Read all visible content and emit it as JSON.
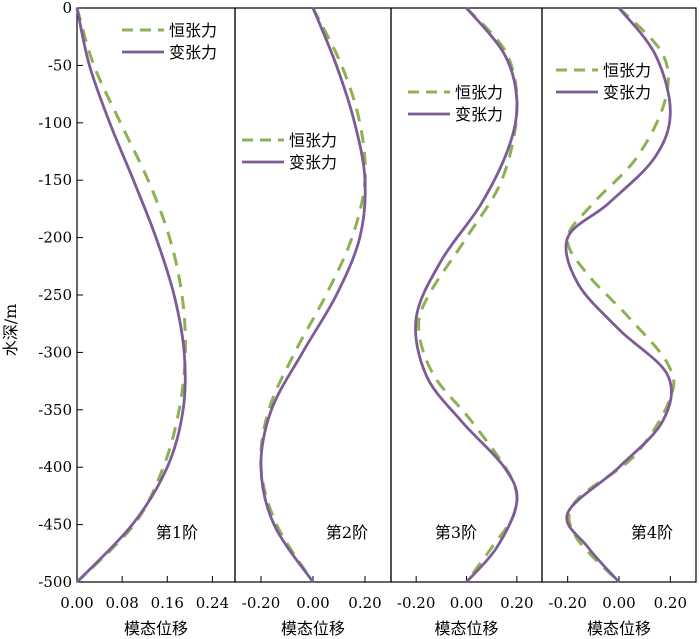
{
  "chart_data": {
    "type": "line",
    "ylabel": "水深/m",
    "ylim": [
      -500,
      0
    ],
    "yticks": [
      0,
      -50,
      -100,
      -150,
      -200,
      -250,
      -300,
      -350,
      -400,
      -450,
      -500
    ],
    "colors": {
      "const": "#8db253",
      "var": "#7d5b96"
    },
    "legend_entries": [
      "恒张力",
      "变张力"
    ],
    "panels": [
      {
        "label": "第1阶",
        "xlabel": "模态位移",
        "xlim": [
          0,
          0.28
        ],
        "xticks": [
          "0.00",
          "0.08",
          "0.16",
          "0.24"
        ],
        "xtick_values": [
          0,
          0.08,
          0.16,
          0.24
        ],
        "legend_position": "top-right",
        "series": [
          {
            "name": "恒张力",
            "style": "dashed",
            "points": [
              [
                0,
                0
              ],
              [
                0.03,
                -50
              ],
              [
                0.077,
                -100
              ],
              [
                0.126,
                -150
              ],
              [
                0.164,
                -200
              ],
              [
                0.186,
                -250
              ],
              [
                0.192,
                -300
              ],
              [
                0.181,
                -350
              ],
              [
                0.153,
                -400
              ],
              [
                0.101,
                -450
              ],
              [
                0,
                -500
              ]
            ]
          },
          {
            "name": "变张力",
            "style": "solid",
            "points": [
              [
                0,
                0
              ],
              [
                0.022,
                -50
              ],
              [
                0.058,
                -100
              ],
              [
                0.1,
                -150
              ],
              [
                0.14,
                -200
              ],
              [
                0.172,
                -250
              ],
              [
                0.19,
                -300
              ],
              [
                0.188,
                -350
              ],
              [
                0.16,
                -400
              ],
              [
                0.098,
                -450
              ],
              [
                0,
                -500
              ]
            ]
          }
        ]
      },
      {
        "label": "第2阶",
        "xlabel": "模态位移",
        "xlim": [
          -0.3,
          0.3
        ],
        "xticks": [
          "-0.20",
          "0.00",
          "0.20"
        ],
        "xtick_values": [
          -0.2,
          0,
          0.2
        ],
        "legend_position": "upper-middle",
        "series": [
          {
            "name": "恒张力",
            "style": "dashed",
            "points": [
              [
                0,
                0
              ],
              [
                0.11,
                -50
              ],
              [
                0.18,
                -100
              ],
              [
                0.2,
                -150
              ],
              [
                0.15,
                -200
              ],
              [
                0.05,
                -250
              ],
              [
                -0.07,
                -300
              ],
              [
                -0.17,
                -350
              ],
              [
                -0.2,
                -400
              ],
              [
                -0.14,
                -450
              ],
              [
                0,
                -500
              ]
            ]
          },
          {
            "name": "变张力",
            "style": "solid",
            "points": [
              [
                0,
                0
              ],
              [
                0.09,
                -50
              ],
              [
                0.16,
                -100
              ],
              [
                0.2,
                -150
              ],
              [
                0.18,
                -200
              ],
              [
                0.09,
                -250
              ],
              [
                -0.04,
                -300
              ],
              [
                -0.16,
                -350
              ],
              [
                -0.2,
                -400
              ],
              [
                -0.15,
                -450
              ],
              [
                0,
                -500
              ]
            ]
          }
        ]
      },
      {
        "label": "第3阶",
        "xlabel": "模态位移",
        "xlim": [
          -0.3,
          0.3
        ],
        "xticks": [
          "-0.20",
          "0.00",
          "0.20"
        ],
        "xtick_values": [
          -0.2,
          0,
          0.2
        ],
        "legend_position": "top-center",
        "series": [
          {
            "name": "恒张力",
            "style": "dashed",
            "points": [
              [
                0,
                0
              ],
              [
                0.16,
                -40
              ],
              [
                0.2,
                -90
              ],
              [
                0.14,
                -150
              ],
              [
                0.0,
                -200
              ],
              [
                -0.15,
                -250
              ],
              [
                -0.19,
                -280
              ],
              [
                -0.13,
                -320
              ],
              [
                0.02,
                -360
              ],
              [
                0.18,
                -410
              ],
              [
                0.19,
                -440
              ],
              [
                0.1,
                -470
              ],
              [
                0,
                -500
              ]
            ]
          },
          {
            "name": "变张力",
            "style": "solid",
            "points": [
              [
                0,
                0
              ],
              [
                0.15,
                -40
              ],
              [
                0.2,
                -80
              ],
              [
                0.17,
                -120
              ],
              [
                0.06,
                -170
              ],
              [
                -0.1,
                -220
              ],
              [
                -0.2,
                -270
              ],
              [
                -0.16,
                -320
              ],
              [
                -0.02,
                -360
              ],
              [
                0.15,
                -400
              ],
              [
                0.2,
                -430
              ],
              [
                0.12,
                -470
              ],
              [
                0,
                -500
              ]
            ]
          }
        ]
      },
      {
        "label": "第4阶",
        "xlabel": "模态位移",
        "xlim": [
          -0.3,
          0.3
        ],
        "xticks": [
          "-0.20",
          "0.00",
          "0.20"
        ],
        "xtick_values": [
          -0.2,
          0,
          0.2
        ],
        "legend_position": "top-center",
        "series": [
          {
            "name": "恒张力",
            "style": "dashed",
            "points": [
              [
                0,
                0
              ],
              [
                0.17,
                -40
              ],
              [
                0.18,
                -80
              ],
              [
                0.07,
                -130
              ],
              [
                -0.1,
                -170
              ],
              [
                -0.2,
                -200
              ],
              [
                -0.13,
                -230
              ],
              [
                0.04,
                -270
              ],
              [
                0.19,
                -310
              ],
              [
                0.2,
                -340
              ],
              [
                0.06,
                -390
              ],
              [
                -0.17,
                -430
              ],
              [
                -0.17,
                -460
              ],
              [
                0,
                -500
              ]
            ]
          },
          {
            "name": "变张力",
            "style": "solid",
            "points": [
              [
                0,
                0
              ],
              [
                0.14,
                -40
              ],
              [
                0.2,
                -90
              ],
              [
                0.14,
                -130
              ],
              [
                -0.04,
                -170
              ],
              [
                -0.2,
                -200
              ],
              [
                -0.16,
                -240
              ],
              [
                0.0,
                -280
              ],
              [
                0.19,
                -320
              ],
              [
                0.17,
                -360
              ],
              [
                0.0,
                -400
              ],
              [
                -0.2,
                -440
              ],
              [
                -0.12,
                -470
              ],
              [
                0,
                -500
              ]
            ]
          }
        ]
      }
    ]
  }
}
